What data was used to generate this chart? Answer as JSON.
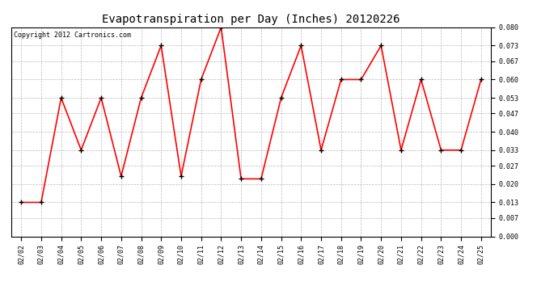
{
  "title": "Evapotranspiration per Day (Inches) 20120226",
  "copyright_text": "Copyright 2012 Cartronics.com",
  "dates": [
    "02/02",
    "02/03",
    "02/04",
    "02/05",
    "02/06",
    "02/07",
    "02/08",
    "02/09",
    "02/10",
    "02/11",
    "02/12",
    "02/13",
    "02/14",
    "02/15",
    "02/16",
    "02/17",
    "02/18",
    "02/19",
    "02/20",
    "02/21",
    "02/22",
    "02/23",
    "02/24",
    "02/25"
  ],
  "values": [
    0.013,
    0.013,
    0.053,
    0.033,
    0.053,
    0.023,
    0.053,
    0.073,
    0.023,
    0.06,
    0.08,
    0.022,
    0.022,
    0.053,
    0.073,
    0.033,
    0.06,
    0.06,
    0.073,
    0.033,
    0.06,
    0.033,
    0.033,
    0.06
  ],
  "line_color": "#ff0000",
  "marker": "+",
  "marker_color": "#000000",
  "marker_size": 4,
  "line_width": 1.2,
  "ylim": [
    0.0,
    0.08
  ],
  "yticks": [
    0.0,
    0.007,
    0.013,
    0.02,
    0.027,
    0.033,
    0.04,
    0.047,
    0.053,
    0.06,
    0.067,
    0.073,
    0.08
  ],
  "background_color": "#ffffff",
  "plot_bg_color": "#ffffff",
  "grid_color": "#bbbbbb",
  "title_fontsize": 10,
  "copyright_fontsize": 6,
  "tick_fontsize": 6,
  "fig_width": 6.9,
  "fig_height": 3.75,
  "dpi": 100
}
